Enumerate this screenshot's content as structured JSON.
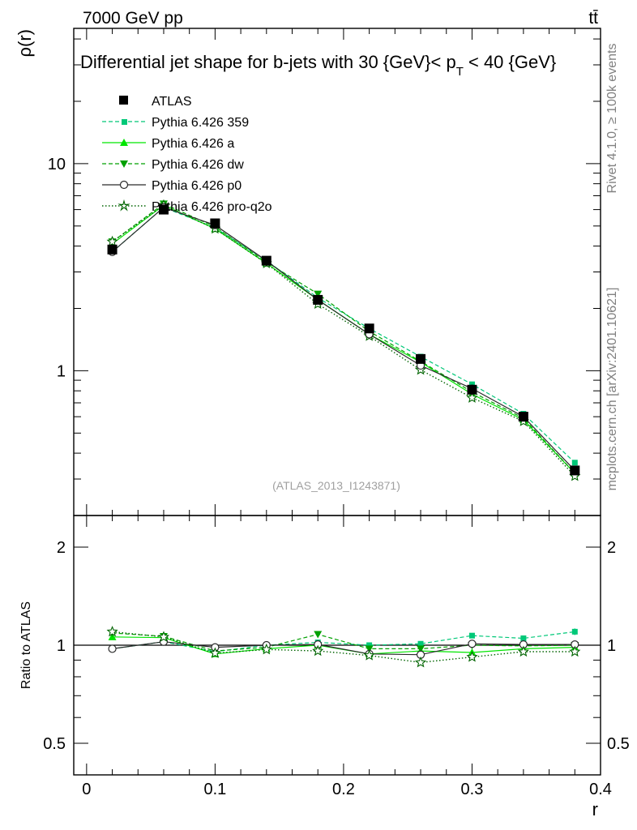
{
  "header": {
    "energy_label": "7000 GeV pp",
    "process_label": "tt̄",
    "side_label_rivet": "Rivet 4.1.0, ≥ 100k events",
    "side_label_mcplots": "mcplots.cern.ch [arXiv:2401.10621]",
    "analysis_id": "(ATLAS_2013_I1243871)"
  },
  "colors": {
    "atlas": "#000000",
    "p359": "#00c878",
    "pa": "#00e600",
    "pdw": "#00a000",
    "pp0": "#2a2a2a",
    "pq2o": "#006400"
  },
  "chart_data": [
    {
      "id": "main",
      "type": "line",
      "title_parts": [
        "Differential jet shape for b-jets with 30 {GeV}< p",
        "T",
        " < 40 {GeV}"
      ],
      "ylabel": "ρ(r)",
      "yscale": "log",
      "ylim": [
        0.2,
        45
      ],
      "xlim": [
        -0.01,
        0.4
      ],
      "yticks": [
        1,
        10
      ],
      "ytick_labels": [
        "1",
        "10"
      ],
      "x": [
        0.02,
        0.06,
        0.1,
        0.14,
        0.18,
        0.22,
        0.26,
        0.3,
        0.34,
        0.38
      ],
      "legend_position": "top-left",
      "series": [
        {
          "key": "atlas",
          "name": "ATLAS",
          "marker": "square",
          "dash": "none",
          "values": [
            3.85,
            6.0,
            5.15,
            3.4,
            2.2,
            1.6,
            1.14,
            0.81,
            0.6,
            0.33
          ]
        },
        {
          "key": "p359",
          "name": "Pythia 6.426 359",
          "marker": "smallsquare",
          "dash": "dashed",
          "values": [
            3.75,
            6.15,
            4.9,
            3.4,
            2.25,
            1.6,
            1.17,
            0.86,
            0.62,
            0.36
          ]
        },
        {
          "key": "pa",
          "name": "Pythia 6.426 a",
          "marker": "triangle-up",
          "dash": "solid",
          "values": [
            4.1,
            6.3,
            4.85,
            3.3,
            2.2,
            1.5,
            1.1,
            0.77,
            0.58,
            0.32
          ]
        },
        {
          "key": "pdw",
          "name": "Pythia 6.426 dw",
          "marker": "triangle-down",
          "dash": "dashed",
          "values": [
            4.2,
            6.4,
            4.95,
            3.35,
            2.35,
            1.55,
            1.11,
            0.79,
            0.59,
            0.32
          ]
        },
        {
          "key": "pp0",
          "name": "Pythia 6.426 p0",
          "marker": "circle",
          "dash": "solid",
          "values": [
            3.75,
            6.15,
            5.05,
            3.4,
            2.2,
            1.5,
            1.06,
            0.82,
            0.6,
            0.33
          ]
        },
        {
          "key": "pq2o",
          "name": "Pythia 6.426 pro-q2o",
          "marker": "star",
          "dash": "dotted",
          "values": [
            4.2,
            6.3,
            4.85,
            3.3,
            2.1,
            1.47,
            1.01,
            0.74,
            0.57,
            0.31
          ]
        }
      ]
    },
    {
      "id": "ratio",
      "type": "line",
      "ylabel": "Ratio to ATLAS",
      "xlabel": "r",
      "yscale": "log",
      "ylim": [
        0.4,
        2.5
      ],
      "xlim": [
        -0.01,
        0.4
      ],
      "reference": 1,
      "yticks": [
        0.5,
        1,
        2
      ],
      "ytick_labels": [
        "0.5",
        "1",
        "2"
      ],
      "xticks": [
        0,
        0.1,
        0.2,
        0.3,
        0.4
      ],
      "xtick_labels": [
        "0",
        "0.1",
        "0.2",
        "0.3",
        "0.4"
      ],
      "x": [
        0.02,
        0.06,
        0.1,
        0.14,
        0.18,
        0.22,
        0.26,
        0.3,
        0.34,
        0.38
      ],
      "series": [
        {
          "key": "p359",
          "values": [
            0.975,
            1.025,
            0.955,
            1.0,
            1.02,
            1.0,
            1.01,
            1.07,
            1.05,
            1.1
          ],
          "errors": [
            0.01,
            0.01,
            0.01,
            0.01,
            0.01,
            0.01,
            0.012,
            0.018,
            0.016,
            0.025
          ]
        },
        {
          "key": "pa",
          "values": [
            1.06,
            1.055,
            0.94,
            0.975,
            1.0,
            0.94,
            0.96,
            0.95,
            0.975,
            0.985
          ]
        },
        {
          "key": "pdw",
          "values": [
            1.09,
            1.065,
            0.96,
            0.985,
            1.08,
            0.975,
            0.975,
            1.0,
            0.995,
            1.0
          ]
        },
        {
          "key": "pp0",
          "values": [
            0.975,
            1.025,
            0.985,
            1.0,
            1.005,
            0.94,
            0.935,
            1.01,
            1.005,
            1.005
          ]
        },
        {
          "key": "pq2o",
          "values": [
            1.1,
            1.06,
            0.945,
            0.97,
            0.96,
            0.93,
            0.885,
            0.92,
            0.955,
            0.955
          ]
        }
      ]
    }
  ]
}
